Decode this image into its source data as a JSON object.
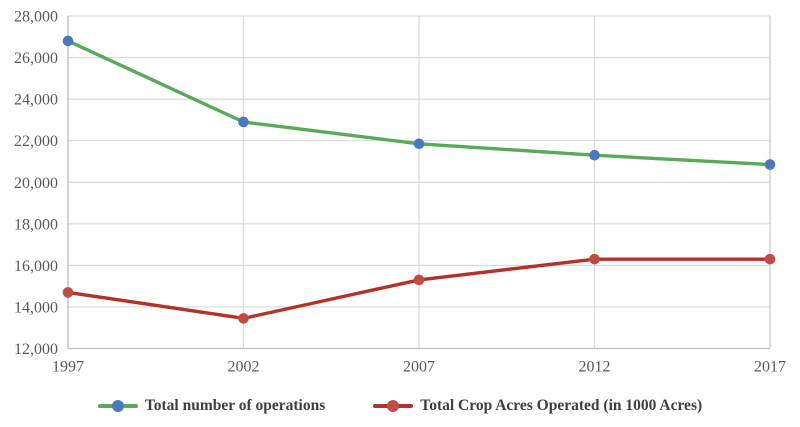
{
  "chart_data": {
    "type": "line",
    "x_labels": [
      "1997",
      "2002",
      "2007",
      "2012",
      "2017"
    ],
    "ylim": [
      12000,
      28000
    ],
    "y_step": 2000,
    "grid": true,
    "legend_position": "bottom",
    "series": [
      {
        "name": "Total number of operations",
        "values": [
          26800,
          22900,
          21850,
          21300,
          20850
        ],
        "line_color": "#5AA85A",
        "marker_color": "#4C79BE"
      },
      {
        "name": "Total Crop Acres Operated (in 1000 Acres)",
        "values": [
          14700,
          13450,
          15300,
          16300,
          16300
        ],
        "line_color": "#B2332C",
        "marker_color": "#BE4D45"
      }
    ]
  },
  "colors": {
    "gridline": "#D9D9D9",
    "axis_line": "#BFBFBF",
    "tick_text": "#595959",
    "legend_text": "#3F3F3F",
    "background": "#FFFFFF"
  }
}
